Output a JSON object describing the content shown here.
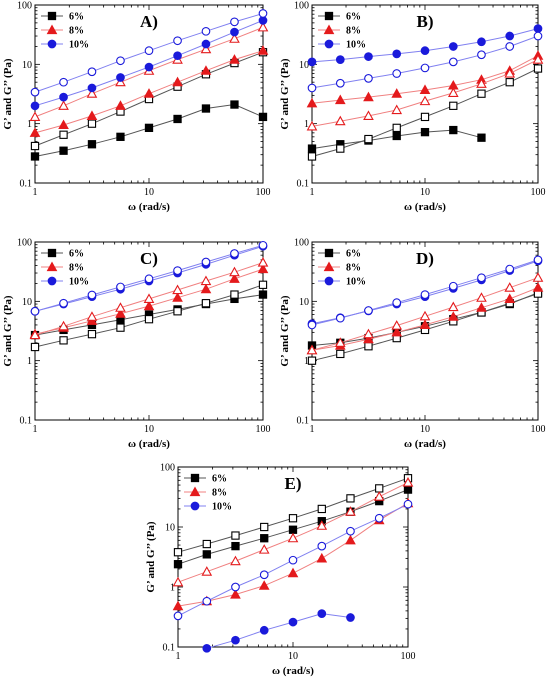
{
  "chart_data": [
    {
      "type": "scatter",
      "panel_label": "A)",
      "xlabel": "ω (rad/s)",
      "ylabel": "G’ and G’’ (Pa)",
      "xscale": "log",
      "yscale": "log",
      "xlim": [
        1,
        100
      ],
      "ylim": [
        0.1,
        100
      ],
      "x_ticks": [
        "1",
        "10",
        "100"
      ],
      "y_ticks": [
        "0.1",
        "1",
        "10",
        "100"
      ],
      "legend_position": "top-left",
      "legend": [
        "6%",
        "8%",
        "10%"
      ],
      "x": [
        1,
        1.78,
        3.16,
        5.62,
        10,
        17.8,
        31.6,
        56.2,
        100
      ],
      "series": [
        {
          "name": "6%",
          "color": "#000000",
          "marker": "square",
          "filled": true,
          "values": [
            0.28,
            0.35,
            0.45,
            0.6,
            0.85,
            1.2,
            1.8,
            2.1,
            1.3
          ]
        },
        {
          "name": "6%",
          "color": "#000000",
          "marker": "square",
          "filled": false,
          "values": [
            0.42,
            0.65,
            1.0,
            1.6,
            2.6,
            4.2,
            6.8,
            10.5,
            16
          ]
        },
        {
          "name": "8%",
          "color": "#e41a1c",
          "marker": "triangle",
          "filled": true,
          "values": [
            0.7,
            0.95,
            1.35,
            2.0,
            3.2,
            5.0,
            7.8,
            12,
            17
          ]
        },
        {
          "name": "8%",
          "color": "#e41a1c",
          "marker": "triangle",
          "filled": false,
          "values": [
            1.3,
            2.0,
            3.2,
            5.0,
            7.8,
            12,
            18,
            27,
            42
          ]
        },
        {
          "name": "10%",
          "color": "#1a1adb",
          "marker": "circle",
          "filled": true,
          "values": [
            2.0,
            2.8,
            4.0,
            6.0,
            9.0,
            14,
            22,
            35,
            55
          ]
        },
        {
          "name": "10%",
          "color": "#1a1adb",
          "marker": "circle",
          "filled": false,
          "values": [
            3.4,
            5.0,
            7.5,
            11.5,
            17,
            25,
            36,
            52,
            72
          ]
        }
      ]
    },
    {
      "type": "scatter",
      "panel_label": "B)",
      "xlabel": "ω (rad/s)",
      "ylabel": "G’ and G’’ (Pa)",
      "xscale": "log",
      "yscale": "log",
      "xlim": [
        1,
        100
      ],
      "ylim": [
        0.1,
        100
      ],
      "x_ticks": [
        "1",
        "10",
        "100"
      ],
      "y_ticks": [
        "0.1",
        "1",
        "10",
        "100"
      ],
      "legend_position": "top-left",
      "legend": [
        "6%",
        "8%",
        "10%"
      ],
      "x": [
        1,
        1.78,
        3.16,
        5.62,
        10,
        17.8,
        31.6,
        56.2,
        100
      ],
      "series": [
        {
          "name": "6%",
          "color": "#000000",
          "marker": "square",
          "filled": true,
          "values": [
            0.38,
            0.45,
            0.52,
            0.62,
            0.72,
            0.78,
            0.58,
            null,
            null
          ]
        },
        {
          "name": "6%",
          "color": "#000000",
          "marker": "square",
          "filled": false,
          "values": [
            0.28,
            0.38,
            0.55,
            0.85,
            1.3,
            2.0,
            3.2,
            5.0,
            8.5
          ]
        },
        {
          "name": "8%",
          "color": "#e41a1c",
          "marker": "triangle",
          "filled": true,
          "values": [
            2.2,
            2.5,
            2.8,
            3.2,
            3.7,
            4.4,
            5.5,
            7.8,
            14
          ]
        },
        {
          "name": "8%",
          "color": "#e41a1c",
          "marker": "triangle",
          "filled": false,
          "values": [
            0.9,
            1.1,
            1.35,
            1.7,
            2.4,
            3.3,
            4.7,
            7.0,
            12
          ]
        },
        {
          "name": "10%",
          "color": "#1a1adb",
          "marker": "circle",
          "filled": true,
          "values": [
            11,
            12,
            13.5,
            15,
            17,
            20,
            24,
            30,
            40
          ]
        },
        {
          "name": "10%",
          "color": "#1a1adb",
          "marker": "circle",
          "filled": false,
          "values": [
            4.0,
            4.8,
            5.8,
            7.0,
            8.7,
            11,
            14.5,
            20,
            30
          ]
        }
      ]
    },
    {
      "type": "scatter",
      "panel_label": "C)",
      "xlabel": "ω (rad/s)",
      "ylabel": "G’ and G’’ (Pa)",
      "xscale": "log",
      "yscale": "log",
      "xlim": [
        1,
        100
      ],
      "ylim": [
        0.1,
        100
      ],
      "x_ticks": [
        "1",
        "10",
        "100"
      ],
      "y_ticks": [
        "0.1",
        "1",
        "10",
        "100"
      ],
      "legend_position": "top-left",
      "legend": [
        "6%",
        "8%",
        "10%"
      ],
      "x": [
        1,
        1.78,
        3.16,
        5.62,
        10,
        17.8,
        31.6,
        56.2,
        100
      ],
      "series": [
        {
          "name": "6%",
          "color": "#000000",
          "marker": "square",
          "filled": true,
          "values": [
            2.7,
            3.3,
            4.0,
            4.9,
            6.0,
            7.3,
            9.0,
            11,
            13
          ]
        },
        {
          "name": "6%",
          "color": "#000000",
          "marker": "square",
          "filled": false,
          "values": [
            1.7,
            2.2,
            2.8,
            3.6,
            5.0,
            6.8,
            9.3,
            13,
            19
          ]
        },
        {
          "name": "8%",
          "color": "#e41a1c",
          "marker": "triangle",
          "filled": true,
          "values": [
            2.8,
            3.6,
            4.7,
            6.2,
            8.3,
            11.5,
            16,
            24,
            35
          ]
        },
        {
          "name": "8%",
          "color": "#e41a1c",
          "marker": "triangle",
          "filled": false,
          "values": [
            2.7,
            3.8,
            5.5,
            7.8,
            11,
            15.5,
            22,
            31,
            45
          ]
        },
        {
          "name": "10%",
          "color": "#1a1adb",
          "marker": "circle",
          "filled": true,
          "values": [
            6.8,
            9.0,
            12,
            16,
            22,
            30,
            42,
            60,
            85
          ]
        },
        {
          "name": "10%",
          "color": "#1a1adb",
          "marker": "circle",
          "filled": false,
          "values": [
            6.8,
            9.3,
            12.8,
            17.5,
            24,
            33,
            46,
            64,
            88
          ]
        }
      ]
    },
    {
      "type": "scatter",
      "panel_label": "D)",
      "xlabel": "ω (rad/s)",
      "ylabel": "G’ and G’’ (Pa)",
      "xscale": "log",
      "yscale": "log",
      "xlim": [
        1,
        100
      ],
      "ylim": [
        0.1,
        100
      ],
      "x_ticks": [
        "1",
        "10",
        "100"
      ],
      "y_ticks": [
        "0.1",
        "1",
        "10",
        "100"
      ],
      "legend_position": "top-left",
      "legend": [
        "6%",
        "8%",
        "10%"
      ],
      "x": [
        1,
        1.78,
        3.16,
        5.62,
        10,
        17.8,
        31.6,
        56.2,
        100
      ],
      "series": [
        {
          "name": "6%",
          "color": "#000000",
          "marker": "square",
          "filled": true,
          "values": [
            1.8,
            2.0,
            2.4,
            3.0,
            3.8,
            5.0,
            6.5,
            9.0,
            14
          ]
        },
        {
          "name": "6%",
          "color": "#000000",
          "marker": "square",
          "filled": false,
          "values": [
            1.0,
            1.3,
            1.75,
            2.4,
            3.3,
            4.6,
            6.5,
            9.3,
            13.5
          ]
        },
        {
          "name": "8%",
          "color": "#e41a1c",
          "marker": "triangle",
          "filled": true,
          "values": [
            1.5,
            1.8,
            2.3,
            3.0,
            4.0,
            5.5,
            7.8,
            11,
            17
          ]
        },
        {
          "name": "8%",
          "color": "#e41a1c",
          "marker": "triangle",
          "filled": false,
          "values": [
            1.5,
            2.0,
            2.8,
            3.9,
            5.6,
            8.0,
            11.5,
            17,
            25
          ]
        },
        {
          "name": "10%",
          "color": "#1a1adb",
          "marker": "circle",
          "filled": true,
          "values": [
            4.2,
            5.3,
            6.9,
            9.0,
            12,
            16.5,
            23,
            33,
            48
          ]
        },
        {
          "name": "10%",
          "color": "#1a1adb",
          "marker": "circle",
          "filled": false,
          "values": [
            4.0,
            5.2,
            7.0,
            9.5,
            13,
            18,
            25,
            35,
            50
          ]
        }
      ]
    },
    {
      "type": "scatter",
      "panel_label": "E)",
      "xlabel": "ω (rad/s)",
      "ylabel": "G’ and G’’ (Pa)",
      "xscale": "log",
      "yscale": "log",
      "xlim": [
        1,
        100
      ],
      "ylim": [
        0.1,
        100
      ],
      "x_ticks": [
        "1",
        "10",
        "100"
      ],
      "y_ticks": [
        "0.1",
        "1",
        "10",
        "100"
      ],
      "legend_position": "top-left",
      "legend": [
        "6%",
        "8%",
        "10%"
      ],
      "x": [
        1,
        1.78,
        3.16,
        5.62,
        10,
        17.8,
        31.6,
        56.2,
        100
      ],
      "series": [
        {
          "name": "6%",
          "color": "#000000",
          "marker": "square",
          "filled": true,
          "values": [
            2.4,
            3.5,
            4.8,
            6.5,
            9.0,
            12.5,
            18,
            27,
            42
          ]
        },
        {
          "name": "6%",
          "color": "#000000",
          "marker": "square",
          "filled": false,
          "values": [
            3.8,
            5.2,
            7.2,
            10,
            14,
            20,
            30,
            44,
            65
          ]
        },
        {
          "name": "8%",
          "color": "#e41a1c",
          "marker": "triangle",
          "filled": true,
          "values": [
            0.48,
            0.58,
            0.75,
            1.05,
            1.7,
            3.0,
            6.0,
            13,
            25
          ]
        },
        {
          "name": "8%",
          "color": "#e41a1c",
          "marker": "triangle",
          "filled": false,
          "values": [
            1.2,
            1.8,
            2.7,
            4.2,
            6.5,
            10.5,
            18,
            32,
            55
          ]
        },
        {
          "name": "10%",
          "color": "#1a1adb",
          "marker": "circle",
          "filled": true,
          "values": [
            null,
            0.095,
            0.13,
            0.19,
            0.26,
            0.36,
            0.31,
            null,
            null
          ]
        },
        {
          "name": "10%",
          "color": "#1a1adb",
          "marker": "circle",
          "filled": false,
          "values": [
            0.33,
            0.58,
            1.0,
            1.6,
            2.8,
            4.8,
            8.5,
            14,
            24
          ]
        }
      ]
    }
  ]
}
